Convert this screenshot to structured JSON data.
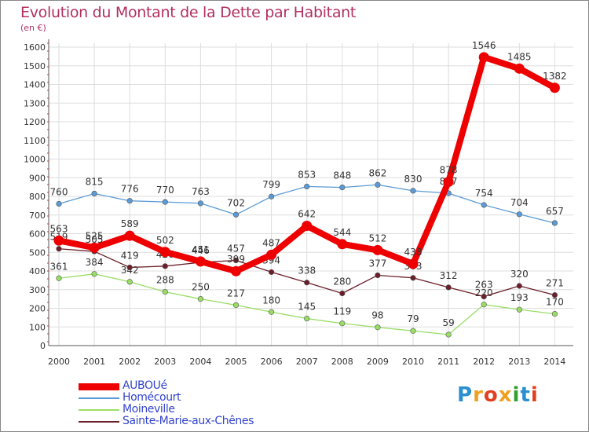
{
  "title": "Evolution du Montant de la Dette par Habitant",
  "subtitle": "(en €)",
  "brand": {
    "letters": [
      "P",
      "r",
      "o",
      "x",
      "i",
      "t",
      "i"
    ],
    "colors": [
      "#2a8fd0",
      "#f0a020",
      "#e04020",
      "#f0a020",
      "#30a030",
      "#2a8fd0",
      "#e04020"
    ]
  },
  "chart_data": {
    "type": "line",
    "categories": [
      "2000",
      "2001",
      "2002",
      "2003",
      "2004",
      "2005",
      "2006",
      "2007",
      "2008",
      "2009",
      "2010",
      "2011",
      "2012",
      "2013",
      "2014"
    ],
    "ylim": [
      0,
      1600
    ],
    "yticks": [
      0,
      100,
      200,
      300,
      400,
      500,
      600,
      700,
      800,
      900,
      1000,
      1100,
      1200,
      1300,
      1400,
      1500,
      1600
    ],
    "grid": true,
    "legend": "bottom-left",
    "series": [
      {
        "name": "Homécourt",
        "color": "#5b9bd5",
        "values": [
          760,
          815,
          776,
          770,
          763,
          702,
          799,
          853,
          848,
          862,
          830,
          817,
          754,
          704,
          657
        ]
      },
      {
        "name": "Moineville",
        "color": "#99dd66",
        "values": [
          361,
          384,
          342,
          288,
          250,
          217,
          180,
          145,
          119,
          98,
          79,
          59,
          220,
          193,
          170
        ]
      },
      {
        "name": "Sainte-Marie-aux-Chênes",
        "color": "#6b1f2a",
        "values": [
          519,
          505,
          419,
          426,
          446,
          457,
          394,
          338,
          280,
          377,
          363,
          312,
          263,
          320,
          271
        ]
      },
      {
        "name": "AUBOUé",
        "color": "#ee0000",
        "values": [
          563,
          525,
          589,
          502,
          451,
          399,
          487,
          642,
          544,
          512,
          438,
          878,
          1546,
          1485,
          1382
        ]
      }
    ]
  }
}
